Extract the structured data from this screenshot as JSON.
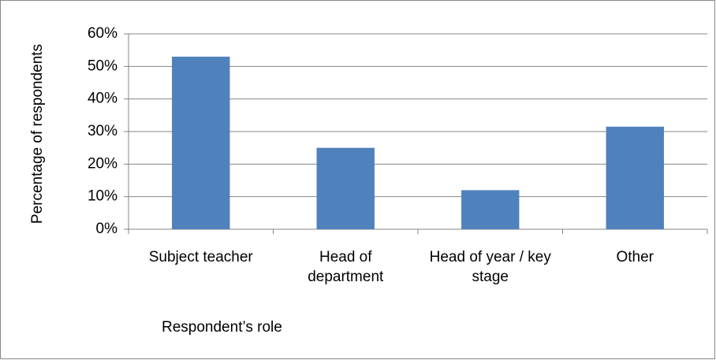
{
  "chart_data": {
    "type": "bar",
    "x_label": "Respondent’s role",
    "y_label": "Percentage of respondents",
    "categories": [
      "Subject teacher",
      "Head of department",
      "Head of year / key stage",
      "Other"
    ],
    "values": [
      53,
      25,
      12,
      31.5
    ],
    "color": "#4f81bd",
    "ylim": [
      0,
      60
    ],
    "yticks": [
      {
        "value": 0,
        "label": "0%"
      },
      {
        "value": 10,
        "label": "10%"
      },
      {
        "value": 20,
        "label": "20%"
      },
      {
        "value": 30,
        "label": "30%"
      },
      {
        "value": 40,
        "label": "40%"
      },
      {
        "value": 50,
        "label": "50%"
      },
      {
        "value": 60,
        "label": "60%"
      }
    ],
    "grid": true
  }
}
